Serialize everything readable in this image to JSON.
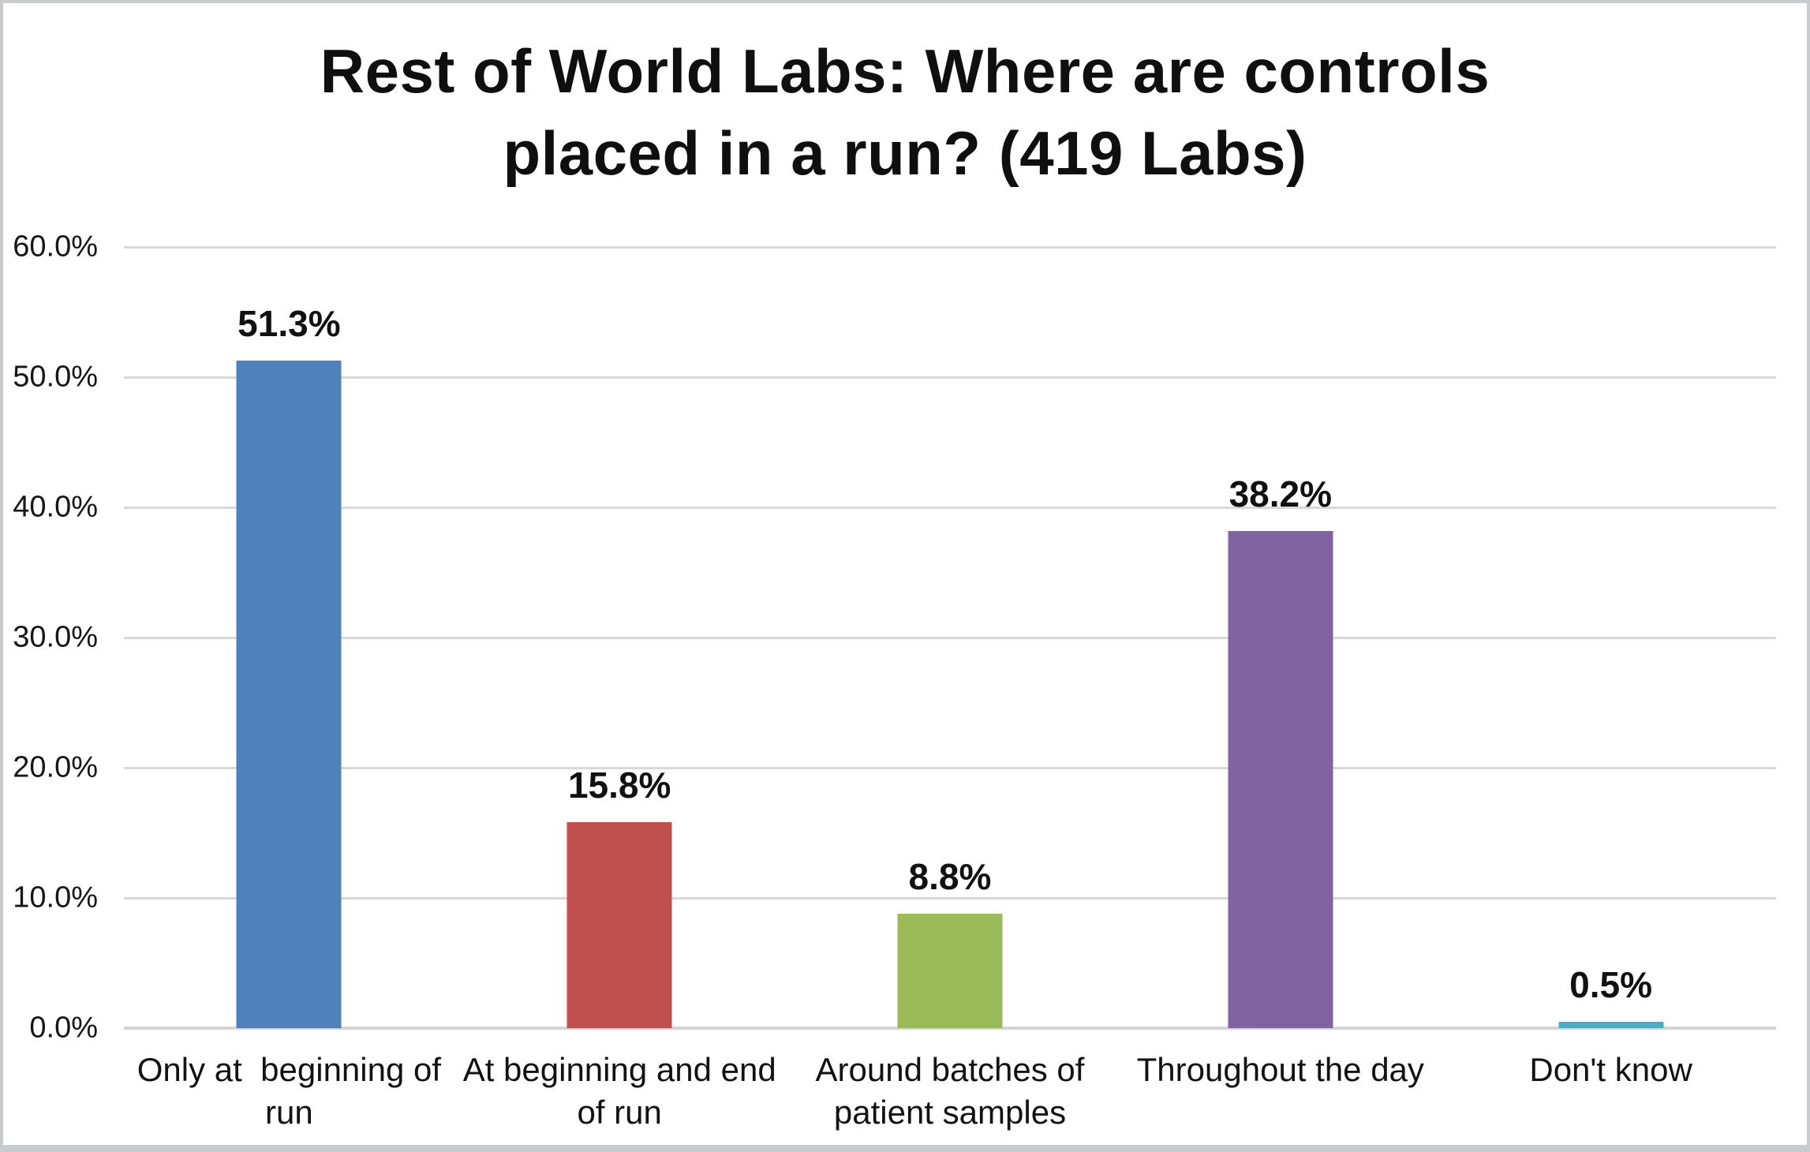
{
  "chart_data": {
    "type": "bar",
    "title": "Rest of World Labs: Where are controls placed in a run? (419 Labs)",
    "title_lines": [
      "Rest of World Labs: Where are controls",
      "placed in a run? (419 Labs)"
    ],
    "categories": [
      "Only at  beginning of run",
      "At beginning and end of run",
      "Around batches of patient samples",
      "Throughout the day",
      "Don't know"
    ],
    "category_lines": [
      [
        "Only at  beginning of",
        "run"
      ],
      [
        "At beginning and end",
        "of run"
      ],
      [
        "Around batches of",
        "patient samples"
      ],
      [
        "Throughout the day"
      ],
      [
        "Don't know"
      ]
    ],
    "values": [
      51.3,
      15.8,
      8.8,
      38.2,
      0.5
    ],
    "value_labels": [
      "51.3%",
      "15.8%",
      "8.8%",
      "38.2%",
      "0.5%"
    ],
    "bar_colors": [
      "#4F81BD",
      "#C0504D",
      "#9BBB59",
      "#8064A2",
      "#4BACC6"
    ],
    "xlabel": "",
    "ylabel": "",
    "ylim": [
      0,
      60
    ],
    "yticks": [
      {
        "value": 0,
        "label": "0.0%"
      },
      {
        "value": 10,
        "label": "10.0%"
      },
      {
        "value": 20,
        "label": "20.0%"
      },
      {
        "value": 30,
        "label": "30.0%"
      },
      {
        "value": 40,
        "label": "40.0%"
      },
      {
        "value": 50,
        "label": "50.0%"
      },
      {
        "value": 60,
        "label": "60.0%"
      }
    ],
    "grid": true,
    "legend_position": "none",
    "gridline_color": "#D9D9D9",
    "axis_line_color": "#D4D4D4",
    "text_color": "#111111",
    "background_color": "#FFFFFF"
  }
}
